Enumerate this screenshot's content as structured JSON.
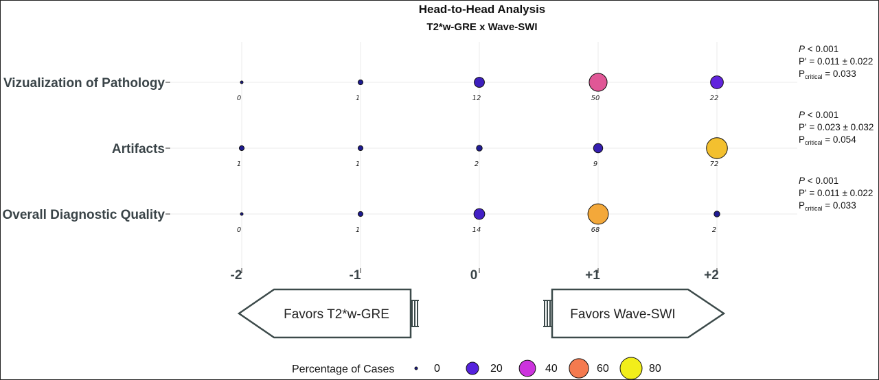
{
  "chart_data": {
    "type": "bubble-grid",
    "title": "Head-to-Head Analysis",
    "subtitle": "T2*w-GRE x Wave-SWI",
    "x_ticks": [
      "-2",
      "-1",
      "0",
      "+1",
      "+2"
    ],
    "x": [
      -2,
      -1,
      0,
      1,
      2
    ],
    "rows": [
      {
        "label": "Vizualization of Pathology",
        "values": [
          0,
          1,
          12,
          50,
          22
        ],
        "labels": [
          "0",
          "1",
          "12",
          "50",
          "22"
        ],
        "stats": {
          "p_sym": "P",
          "p_text": " < 0.001",
          "p_prime": "P' = 0.011 ± 0.022",
          "p_crit_main": "P",
          "p_crit_sub": "critical",
          "p_crit_val": " = 0.033"
        }
      },
      {
        "label": "Artifacts",
        "values": [
          1,
          1,
          2,
          9,
          72
        ],
        "labels": [
          "1",
          "1",
          "2",
          "9",
          "72"
        ],
        "stats": {
          "p_sym": "P",
          "p_text": " < 0.001",
          "p_prime": "P' = 0.023 ± 0.032",
          "p_crit_main": "P",
          "p_crit_sub": "critical",
          "p_crit_val": " = 0.054"
        }
      },
      {
        "label": "Overall Diagnostic Quality",
        "values": [
          0,
          1,
          14,
          68,
          2
        ],
        "labels": [
          "0",
          "1",
          "14",
          "68",
          "2"
        ],
        "stats": {
          "p_sym": "P",
          "p_text": " < 0.001",
          "p_prime": "P' = 0.011 ± 0.022",
          "p_crit_main": "P",
          "p_crit_sub": "critical",
          "p_crit_val": " = 0.033"
        }
      }
    ],
    "arrows": {
      "left": "Favors T2*w-GRE",
      "right": "Favors Wave-SWI"
    },
    "legend": {
      "title": "Percentage of Cases",
      "items": [
        {
          "value": 0,
          "label": "0"
        },
        {
          "value": 20,
          "label": "20"
        },
        {
          "value": 40,
          "label": "40"
        },
        {
          "value": 60,
          "label": "60"
        },
        {
          "value": 80,
          "label": "80"
        }
      ]
    },
    "color_scale": [
      {
        "v": 0,
        "color": "#1a1a8c"
      },
      {
        "v": 20,
        "color": "#5522dd"
      },
      {
        "v": 40,
        "color": "#cc33dd"
      },
      {
        "v": 60,
        "color": "#f47a4f"
      },
      {
        "v": 80,
        "color": "#f2ee1a"
      }
    ],
    "grid": true
  }
}
